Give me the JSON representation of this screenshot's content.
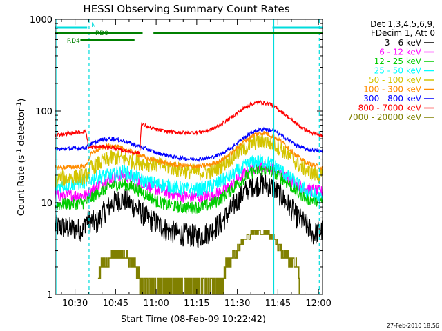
{
  "chart_data": {
    "type": "line",
    "title": "HESSI Observing Summary Count Rates",
    "xlabel": "Start Time (08-Feb-09 10:22:42)",
    "ylabel_main": "Count Rate (s",
    "ylabel_sup1": "-1",
    "ylabel_mid": " detector",
    "ylabel_sup2": "-1",
    "ylabel_end": ")",
    "timestamp": "27-Feb-2010 18:56",
    "x_range_minutes": [
      22.7,
      121.5
    ],
    "y_scale": "log",
    "y_range": [
      1,
      1000
    ],
    "y_ticks": [
      {
        "value": 1,
        "label": "1"
      },
      {
        "value": 10,
        "label": "10"
      },
      {
        "value": 100,
        "label": "100"
      },
      {
        "value": 1000,
        "label": "1000"
      }
    ],
    "x_ticks": [
      {
        "minute": 30,
        "label": "10:30"
      },
      {
        "minute": 45,
        "label": "10:45"
      },
      {
        "minute": 60,
        "label": "11:00"
      },
      {
        "minute": 75,
        "label": "11:15"
      },
      {
        "minute": 90,
        "label": "11:30"
      },
      {
        "minute": 105,
        "label": "11:45"
      },
      {
        "minute": 120,
        "label": "12:00"
      }
    ],
    "legend_header": [
      "Det 1,3,4,5,6,9,",
      "FDecim 1, Att 0"
    ],
    "series": [
      {
        "name": "3 - 6 keV",
        "color": "#000000",
        "x": [
          22.7,
          33,
          34,
          38,
          44,
          48,
          52,
          56,
          60,
          64,
          68,
          72,
          76,
          80,
          84,
          88,
          92,
          96,
          100,
          104,
          108,
          112,
          116,
          118,
          121.5
        ],
        "y": [
          5.5,
          5.0,
          6.5,
          6.0,
          10.0,
          11.0,
          9.0,
          7.0,
          6.0,
          5.0,
          4.6,
          4.4,
          4.3,
          4.8,
          6.0,
          8.5,
          12.5,
          15.5,
          16.0,
          14.0,
          10.0,
          7.0,
          5.5,
          4.5,
          5.0
        ]
      },
      {
        "name": "6 - 12 keV",
        "color": "#ff00ff",
        "x": [
          22.7,
          34,
          38,
          44,
          48,
          52,
          56,
          60,
          64,
          68,
          72,
          76,
          80,
          84,
          88,
          92,
          96,
          100,
          104,
          108,
          112,
          116,
          121.5
        ],
        "y": [
          12.0,
          12.0,
          15.0,
          19.0,
          20.0,
          18.0,
          16.0,
          14.0,
          13.0,
          12.0,
          11.5,
          11.5,
          12.0,
          13.0,
          15.5,
          20.0,
          24.0,
          25.0,
          23.0,
          19.0,
          16.0,
          14.0,
          13.0
        ]
      },
      {
        "name": "12 - 25 keV",
        "color": "#00cc00",
        "x": [
          22.7,
          34,
          38,
          44,
          48,
          52,
          56,
          60,
          64,
          68,
          72,
          76,
          80,
          84,
          88,
          92,
          96,
          100,
          104,
          108,
          112,
          116,
          121.5
        ],
        "y": [
          9.5,
          10.0,
          12.5,
          15.5,
          16.0,
          14.5,
          12.5,
          10.5,
          9.5,
          9.0,
          8.8,
          9.0,
          9.5,
          11.0,
          14.0,
          18.0,
          22.0,
          23.0,
          21.0,
          17.0,
          13.0,
          11.0,
          10.5
        ]
      },
      {
        "name": "25 - 50 keV",
        "color": "#00ffff",
        "x": [
          22.7,
          34,
          38,
          44,
          48,
          52,
          56,
          60,
          64,
          68,
          72,
          76,
          80,
          84,
          88,
          92,
          96,
          100,
          104,
          108,
          112,
          116,
          121.5
        ],
        "y": [
          15.0,
          17.0,
          19.0,
          20.0,
          22.0,
          19.0,
          17.0,
          16.0,
          15.5,
          14.5,
          14.0,
          14.0,
          15.0,
          17.0,
          20.0,
          24.0,
          28.0,
          28.5,
          25.0,
          20.0,
          16.0,
          13.0,
          11.0
        ]
      },
      {
        "name": "50 - 100 keV",
        "color": "#d4c400",
        "x": [
          22.7,
          34,
          36,
          40,
          44,
          48,
          52,
          56,
          60,
          64,
          68,
          72,
          76,
          80,
          84,
          88,
          92,
          96,
          100,
          104,
          108,
          112,
          116,
          121.5
        ],
        "y": [
          18.0,
          19.5,
          24.0,
          28.0,
          31.0,
          30.0,
          28.0,
          27.0,
          26.0,
          25.0,
          23.0,
          22.0,
          21.5,
          22.0,
          25.0,
          31.0,
          38.0,
          45.0,
          47.0,
          43.0,
          35.0,
          27.0,
          22.0,
          19.0
        ]
      },
      {
        "name": "100 - 300 keV",
        "color": "#ff8c00",
        "x": [
          22.7,
          34,
          36,
          40,
          44,
          48,
          52,
          56,
          60,
          64,
          68,
          72,
          76,
          80,
          84,
          88,
          92,
          96,
          100,
          104,
          108,
          112,
          116,
          121.5
        ],
        "y": [
          24.0,
          25.0,
          34.0,
          40.0,
          42.0,
          39.0,
          35.0,
          31.0,
          29.0,
          27.0,
          25.5,
          25.0,
          25.0,
          26.0,
          29.0,
          35.0,
          45.0,
          55.0,
          58.0,
          52.0,
          42.0,
          32.0,
          27.0,
          24.0
        ]
      },
      {
        "name": "300 - 800 keV",
        "color": "#0000ff",
        "x": [
          22.7,
          34,
          36,
          40,
          44,
          48,
          52,
          56,
          60,
          64,
          68,
          72,
          76,
          80,
          84,
          88,
          92,
          96,
          100,
          104,
          108,
          112,
          116,
          121.5
        ],
        "y": [
          38.0,
          40.0,
          44.0,
          49.0,
          50.0,
          47.0,
          43.0,
          39.0,
          35.0,
          33.0,
          31.0,
          30.0,
          30.0,
          31.0,
          34.0,
          40.0,
          50.0,
          60.0,
          64.0,
          60.0,
          50.0,
          42.0,
          38.0,
          36.0
        ]
      },
      {
        "name": "800 - 7000 keV",
        "color": "#ff0000",
        "x": [
          22.7,
          30,
          34,
          35,
          40,
          44,
          48,
          52,
          54,
          54.5,
          58,
          62,
          66,
          70,
          74,
          78,
          82,
          86,
          90,
          94,
          98,
          102,
          106,
          110,
          114,
          118,
          121.5
        ],
        "y": [
          55.0,
          58.0,
          60.0,
          40.0,
          41.0,
          40.0,
          37.0,
          35.0,
          35.0,
          72.0,
          65.0,
          61.0,
          59.0,
          58.0,
          58.0,
          60.0,
          66.0,
          78.0,
          95.0,
          115.0,
          125.0,
          120.0,
          100.0,
          80.0,
          65.0,
          57.0,
          54.0
        ]
      },
      {
        "name": "7000 - 20000 keV",
        "color": "#808000",
        "x": [
          38.5,
          40,
          42,
          44,
          46,
          48,
          50,
          52,
          54,
          84.5,
          86,
          88,
          90,
          92,
          94,
          96,
          98,
          100,
          102,
          104,
          106,
          108,
          110,
          112,
          113
        ],
        "y": [
          1.0,
          2.0,
          2.2,
          2.4,
          2.6,
          2.4,
          2.2,
          2.0,
          1.0,
          1.0,
          2.0,
          2.2,
          2.8,
          3.5,
          4.0,
          4.5,
          4.8,
          4.6,
          4.2,
          3.6,
          2.8,
          2.4,
          2.0,
          1.8,
          1.0
        ]
      }
    ],
    "flags": [
      {
        "label": "N",
        "color": "#00dcdc",
        "segments": [
          [
            22.7,
            34.5
          ],
          [
            103,
            121.5
          ]
        ]
      },
      {
        "label": "RD0",
        "color": "#008000",
        "segments": [
          [
            22.7,
            55
          ],
          [
            59,
            121.5
          ]
        ]
      },
      {
        "label": "RD4",
        "color": "#008000",
        "segments": [
          [
            32,
            52
          ]
        ]
      }
    ],
    "vlines": [
      {
        "minute": 23.2,
        "style": "solid",
        "color": "#00dcdc"
      },
      {
        "minute": 35.2,
        "style": "dashed",
        "color": "#00dcdc"
      },
      {
        "minute": 103.5,
        "style": "solid",
        "color": "#00dcdc"
      },
      {
        "minute": 120.3,
        "style": "dashed",
        "color": "#00dcdc"
      }
    ]
  }
}
